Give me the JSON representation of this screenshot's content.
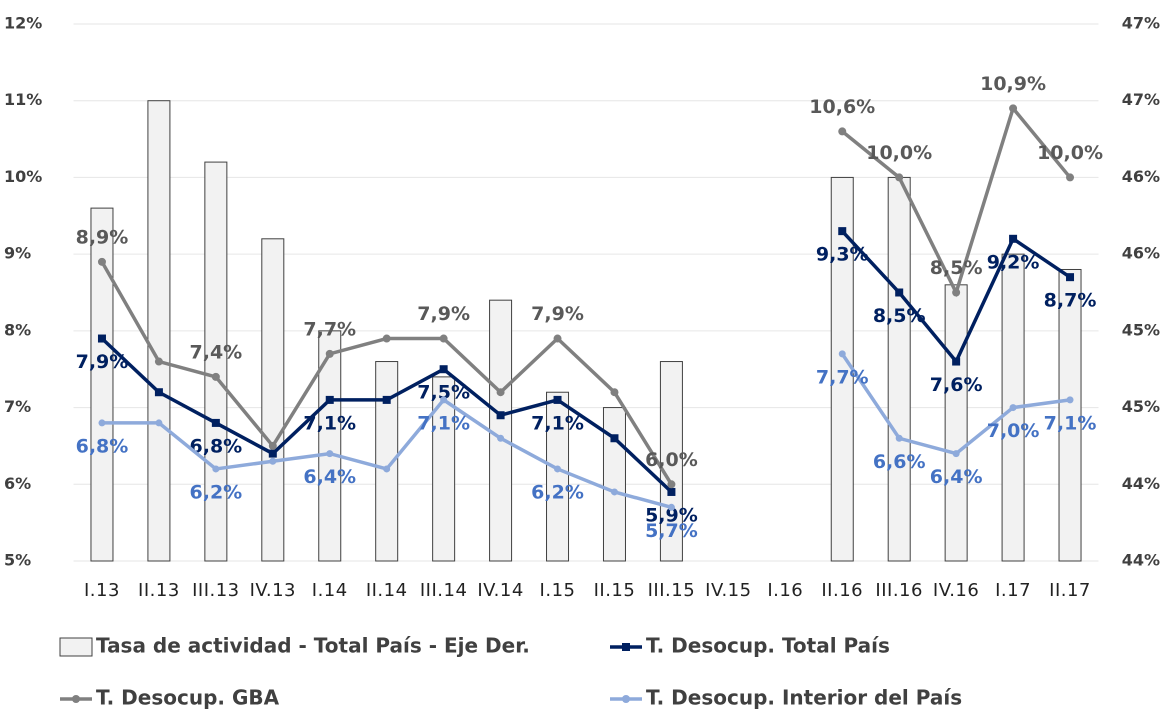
{
  "chart_data": {
    "type": "bar-line",
    "categories": [
      "I.13",
      "II.13",
      "III.13",
      "IV.13",
      "I.14",
      "II.14",
      "III.14",
      "IV.14",
      "I.15",
      "II.15",
      "III.15",
      "IV.15",
      "I.16",
      "II.16",
      "III.16",
      "IV.16",
      "I.17",
      "II.17"
    ],
    "ylim": [
      5,
      12
    ],
    "yticks": [
      {
        "value": 5,
        "label": "5%"
      },
      {
        "value": 6,
        "label": "6%"
      },
      {
        "value": 7,
        "label": "7%"
      },
      {
        "value": 8,
        "label": "8%"
      },
      {
        "value": 9,
        "label": "9%"
      },
      {
        "value": 10,
        "label": "10%"
      },
      {
        "value": 11,
        "label": "11%"
      },
      {
        "value": 12,
        "label": "12%"
      }
    ],
    "y2lim": [
      43.5,
      47
    ],
    "y2ticks": [
      {
        "value": 43.5,
        "label": "44%"
      },
      {
        "value": 44,
        "label": "44%"
      },
      {
        "value": 44.5,
        "label": "45%"
      },
      {
        "value": 45,
        "label": "45%"
      },
      {
        "value": 45.5,
        "label": "46%"
      },
      {
        "value": 46,
        "label": "46%"
      },
      {
        "value": 46.5,
        "label": "47%"
      },
      {
        "value": 47,
        "label": "47%"
      }
    ],
    "series": [
      {
        "name": "Tasa de actividad - Total País - Eje Der.",
        "type": "bar",
        "axis": "y2",
        "color": "#f2f2f2",
        "values": [
          45.8,
          46.5,
          46.1,
          45.6,
          45.0,
          44.8,
          44.7,
          45.2,
          44.6,
          44.5,
          44.8,
          null,
          null,
          46.0,
          46.0,
          45.3,
          45.5,
          45.4
        ]
      },
      {
        "name": "T. Desocup. Total País",
        "type": "line",
        "color": "#002060",
        "values": [
          7.9,
          7.2,
          6.8,
          6.4,
          7.1,
          7.1,
          7.5,
          6.9,
          7.1,
          6.6,
          5.9,
          null,
          null,
          9.3,
          8.5,
          7.6,
          9.2,
          8.7
        ],
        "value_labels": [
          "7,9%",
          null,
          "6,8%",
          null,
          "7,1%",
          null,
          "7,5%",
          null,
          "7,1%",
          null,
          "5,9%",
          null,
          null,
          "9,3%",
          "8,5%",
          "7,6%",
          "9,2%",
          "8,7%"
        ]
      },
      {
        "name": "T. Desocup. GBA",
        "type": "line",
        "color": "#808080",
        "values": [
          8.9,
          7.6,
          7.4,
          6.5,
          7.7,
          7.9,
          7.9,
          7.2,
          7.9,
          7.2,
          6.0,
          null,
          null,
          10.6,
          10.0,
          8.5,
          10.9,
          10.0
        ],
        "value_labels": [
          "8,9%",
          null,
          "7,4%",
          null,
          "7,7%",
          null,
          "7,9%",
          null,
          "7,9%",
          null,
          "6,0%",
          null,
          null,
          "10,6%",
          "10,0%",
          "8,5%",
          "10,9%",
          "10,0%"
        ]
      },
      {
        "name": "T. Desocup. Interior del País",
        "type": "line",
        "color": "#8eaadb",
        "values": [
          6.8,
          6.8,
          6.2,
          6.3,
          6.4,
          6.2,
          7.1,
          6.6,
          6.2,
          5.9,
          5.7,
          null,
          null,
          7.7,
          6.6,
          6.4,
          7.0,
          7.1
        ],
        "value_labels": [
          "6,8%",
          null,
          "6,2%",
          null,
          "6,4%",
          null,
          "7,1%",
          null,
          "6,2%",
          null,
          "5,7%",
          null,
          null,
          "7,7%",
          "6,6%",
          "6,4%",
          "7,0%",
          "7,1%"
        ]
      }
    ],
    "grid": true
  }
}
